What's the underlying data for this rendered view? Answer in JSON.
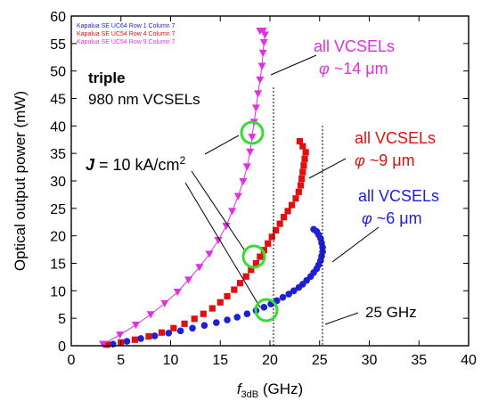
{
  "chart_data": {
    "type": "line",
    "xlabel_main": "f",
    "xlabel_sub": "3dB",
    "xlabel_unit": " (GHz)",
    "ylabel": "Optical output power (mW)",
    "xlim": [
      0,
      40
    ],
    "ylim": [
      0,
      60
    ],
    "xticks": [
      0,
      5,
      10,
      15,
      20,
      25,
      30,
      35,
      40
    ],
    "yticks": [
      0,
      5,
      10,
      15,
      20,
      25,
      30,
      35,
      40,
      45,
      50,
      55,
      60
    ],
    "grid": false,
    "legend_position": "top-left",
    "series": [
      {
        "name": "Kapalua SE UC64 Row 1 Column 7",
        "color": "#1f1fd6",
        "marker": "circle",
        "line": false,
        "points": [
          [
            4.2,
            0.3
          ],
          [
            5.6,
            0.8
          ],
          [
            7.0,
            1.3
          ],
          [
            8.4,
            1.8
          ],
          [
            9.8,
            2.3
          ],
          [
            11.0,
            2.7
          ],
          [
            12.2,
            3.2
          ],
          [
            13.4,
            3.7
          ],
          [
            14.6,
            4.2
          ],
          [
            15.7,
            4.7
          ],
          [
            16.7,
            5.2
          ],
          [
            17.7,
            5.8
          ],
          [
            18.6,
            6.4
          ],
          [
            19.4,
            7.0
          ],
          [
            20.1,
            7.6
          ],
          [
            20.7,
            8.2
          ],
          [
            21.3,
            8.8
          ],
          [
            21.9,
            9.4
          ],
          [
            22.4,
            10.0
          ],
          [
            22.9,
            10.6
          ],
          [
            23.3,
            11.2
          ],
          [
            23.7,
            11.9
          ],
          [
            24.1,
            12.6
          ],
          [
            24.4,
            13.3
          ],
          [
            24.7,
            14.0
          ],
          [
            24.9,
            14.7
          ],
          [
            25.1,
            15.5
          ],
          [
            25.2,
            16.3
          ],
          [
            25.3,
            17.1
          ],
          [
            25.3,
            17.9
          ],
          [
            25.2,
            18.7
          ],
          [
            25.1,
            19.5
          ],
          [
            24.9,
            20.2
          ],
          [
            24.7,
            20.8
          ],
          [
            24.4,
            21.2
          ]
        ]
      },
      {
        "name": "Kapalua SE UC54 Row 4 Column 7",
        "color": "#e01010",
        "marker": "square",
        "line": false,
        "points": [
          [
            3.6,
            0.2
          ],
          [
            5.0,
            0.6
          ],
          [
            6.4,
            1.1
          ],
          [
            7.8,
            1.7
          ],
          [
            9.1,
            2.4
          ],
          [
            10.3,
            3.2
          ],
          [
            11.4,
            4.0
          ],
          [
            12.4,
            4.9
          ],
          [
            13.3,
            5.8
          ],
          [
            14.2,
            6.8
          ],
          [
            15.0,
            7.9
          ],
          [
            15.7,
            9.0
          ],
          [
            16.4,
            10.2
          ],
          [
            17.0,
            11.4
          ],
          [
            17.6,
            12.6
          ],
          [
            18.1,
            13.8
          ],
          [
            18.6,
            15.0
          ],
          [
            19.0,
            16.2
          ],
          [
            19.4,
            17.4
          ],
          [
            19.8,
            18.6
          ],
          [
            20.2,
            19.8
          ],
          [
            20.6,
            21.0
          ],
          [
            21.0,
            22.2
          ],
          [
            21.4,
            23.4
          ],
          [
            21.8,
            24.5
          ],
          [
            22.2,
            25.6
          ],
          [
            22.6,
            26.8
          ],
          [
            22.9,
            28.0
          ],
          [
            23.1,
            29.2
          ],
          [
            23.2,
            30.4
          ],
          [
            23.3,
            31.6
          ],
          [
            23.4,
            32.8
          ],
          [
            23.5,
            34.0
          ],
          [
            23.6,
            35.2
          ],
          [
            23.3,
            36.3
          ],
          [
            23.0,
            37.2
          ]
        ]
      },
      {
        "name": "Kapalua SE UC54 Row 9 Column 7",
        "color": "#e030e0",
        "marker": "triangle-down",
        "line": true,
        "points": [
          [
            3.2,
            0.3
          ],
          [
            4.9,
            2.0
          ],
          [
            6.5,
            3.8
          ],
          [
            8.0,
            5.7
          ],
          [
            9.4,
            7.7
          ],
          [
            10.7,
            9.8
          ],
          [
            11.8,
            12.0
          ],
          [
            12.9,
            14.3
          ],
          [
            13.9,
            16.7
          ],
          [
            14.8,
            19.2
          ],
          [
            15.6,
            21.8
          ],
          [
            16.2,
            24.5
          ],
          [
            16.8,
            27.2
          ],
          [
            17.3,
            29.9
          ],
          [
            17.7,
            32.6
          ],
          [
            18.0,
            35.3
          ],
          [
            18.2,
            38.0
          ],
          [
            18.4,
            40.7
          ],
          [
            18.6,
            43.3
          ],
          [
            18.8,
            45.9
          ],
          [
            19.0,
            48.4
          ],
          [
            19.2,
            50.9
          ],
          [
            19.3,
            53.3
          ],
          [
            19.4,
            55.2
          ],
          [
            19.5,
            56.6
          ],
          [
            19.3,
            57.3
          ],
          [
            19.0,
            57.3
          ]
        ]
      }
    ],
    "annotations": {
      "triple": "triple",
      "vcsel_type": "980 nm VCSELs",
      "all_vcsels": "all VCSELs",
      "phi": "φ",
      "d14": " ~14 ",
      "d9": " ~9 ",
      "d6": " ~6 ",
      "um": "μm",
      "j_label": "J",
      "j_value": " = 10 kA/cm",
      "j_sup": "2",
      "freq_25": "25 GHz"
    },
    "colors": {
      "axis": "#000000",
      "blue": "#1f1fd6",
      "red": "#e01010",
      "magenta": "#e030e0",
      "circle": "#33dd33"
    }
  }
}
